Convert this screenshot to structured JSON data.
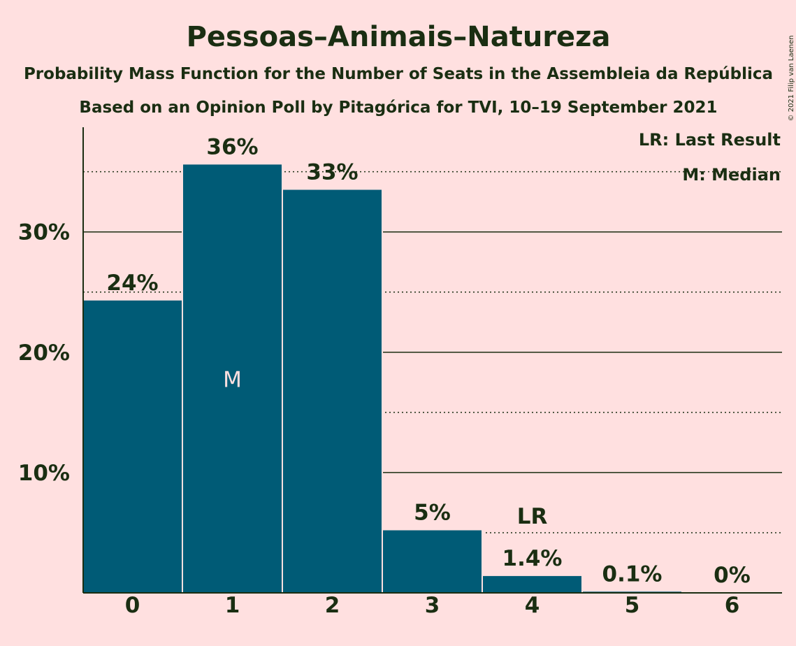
{
  "chart_data": {
    "type": "bar",
    "title": "Pessoas–Animais–Natureza",
    "subtitle1": "Probability Mass Function for the Number of Seats in the Assembleia da República",
    "subtitle2": "Based on an Opinion Poll by Pitagórica for TVI, 10–19 September 2021",
    "copyright": "© 2021 Filip van Laenen",
    "categories": [
      "0",
      "1",
      "2",
      "3",
      "4",
      "5",
      "6"
    ],
    "values": [
      24.3,
      35.6,
      33.5,
      5.2,
      1.4,
      0.1,
      0.0
    ],
    "value_labels": [
      "24%",
      "36%",
      "33%",
      "5%",
      "1.4%",
      "0.1%",
      "0%"
    ],
    "y_ticks": [
      {
        "value": 10,
        "label": "10%"
      },
      {
        "value": 20,
        "label": "20%"
      },
      {
        "value": 30,
        "label": "30%"
      }
    ],
    "minor_gridlines": [
      5,
      15,
      25,
      35
    ],
    "ylim": [
      0,
      38.7
    ],
    "median_index": 1,
    "median_marker": "M",
    "last_result_index": 4,
    "last_result_marker": "LR",
    "legend": [
      "LR: Last Result",
      "M: Median"
    ],
    "legend_position": "top-right",
    "colors": {
      "background": "#ffe0e0",
      "bar": "#005b76",
      "text": "#1a2e12",
      "median_text": "#ffe0e0"
    }
  }
}
